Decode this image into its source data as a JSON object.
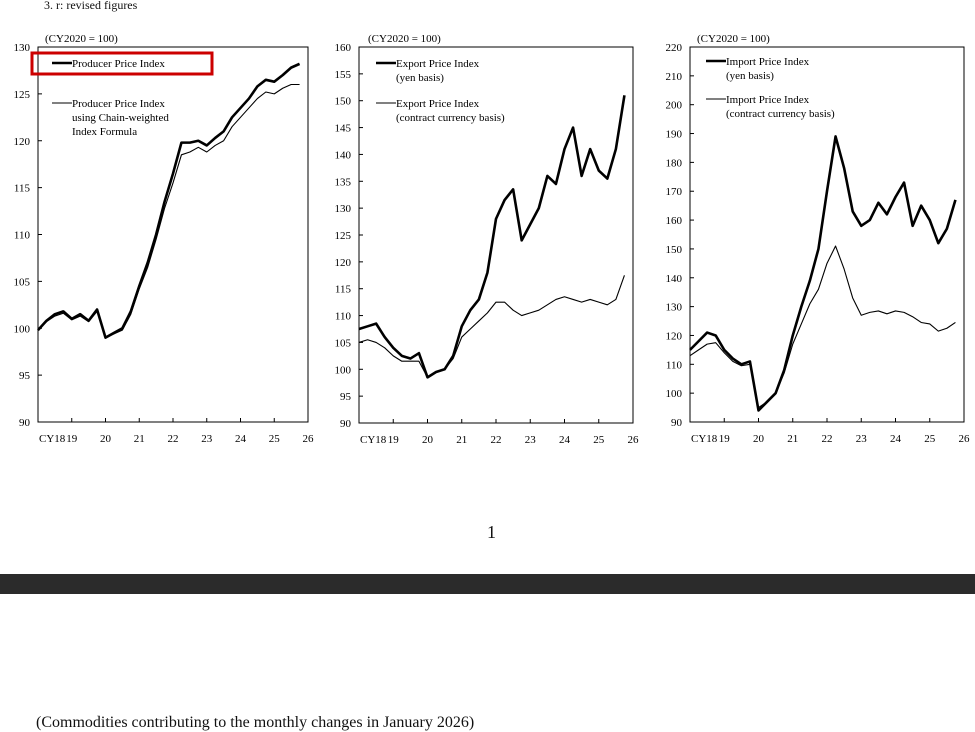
{
  "page": {
    "note": "3. r: revised figures",
    "page_number": "1",
    "section_heading": "(Commodities contributing to the monthly changes in January 2026)",
    "highlight_color": "#cc0000",
    "separator_color": "#2b2b2b"
  },
  "chart_data": [
    {
      "type": "line",
      "unit_label": "(CY2020 = 100)",
      "x_tick_labels": [
        "CY18",
        "19",
        "20",
        "21",
        "22",
        "23",
        "24",
        "25",
        "26"
      ],
      "ylim": [
        90,
        130
      ],
      "y_ticks": [
        90,
        95,
        100,
        105,
        110,
        115,
        120,
        125,
        130
      ],
      "x": [
        2018.0,
        2018.25,
        2018.5,
        2018.75,
        2019.0,
        2019.25,
        2019.5,
        2019.75,
        2020.0,
        2020.25,
        2020.5,
        2020.75,
        2021.0,
        2021.25,
        2021.5,
        2021.75,
        2022.0,
        2022.25,
        2022.5,
        2022.75,
        2023.0,
        2023.25,
        2023.5,
        2023.75,
        2024.0,
        2024.25,
        2024.5,
        2024.75,
        2025.0,
        2025.25,
        2025.5,
        2025.75
      ],
      "series": [
        {
          "name": "Producer Price Index",
          "legend_lines": [
            "Producer Price Index"
          ],
          "stroke": "#000",
          "width": 2.6,
          "highlighted": true,
          "values": [
            99.8,
            100.8,
            101.5,
            101.8,
            101.0,
            101.5,
            100.8,
            102.0,
            99.0,
            99.5,
            100.0,
            101.8,
            104.5,
            107.0,
            110.0,
            113.5,
            116.5,
            119.8,
            119.8,
            120.0,
            119.5,
            120.3,
            121.0,
            122.5,
            123.5,
            124.5,
            125.8,
            126.5,
            126.3,
            127.0,
            127.8,
            128.2
          ]
        },
        {
          "name": "Producer Price Index using Chain-weighted Index Formula",
          "legend_lines": [
            "Producer Price Index",
            "using Chain-weighted",
            "Index Formula"
          ],
          "stroke": "#000",
          "width": 1.1,
          "highlighted": false,
          "values": [
            99.8,
            100.7,
            101.3,
            101.6,
            100.9,
            101.3,
            100.7,
            101.8,
            99.0,
            99.4,
            99.8,
            101.5,
            104.2,
            106.5,
            109.5,
            112.8,
            115.5,
            118.5,
            118.8,
            119.3,
            118.8,
            119.5,
            120.0,
            121.5,
            122.5,
            123.5,
            124.5,
            125.2,
            125.0,
            125.6,
            126.0,
            126.0
          ]
        }
      ]
    },
    {
      "type": "line",
      "unit_label": "(CY2020 = 100)",
      "x_tick_labels": [
        "CY18",
        "19",
        "20",
        "21",
        "22",
        "23",
        "24",
        "25",
        "26"
      ],
      "ylim": [
        90,
        160
      ],
      "y_ticks": [
        90,
        95,
        100,
        105,
        110,
        115,
        120,
        125,
        130,
        135,
        140,
        145,
        150,
        155,
        160
      ],
      "x": [
        2018.0,
        2018.25,
        2018.5,
        2018.75,
        2019.0,
        2019.25,
        2019.5,
        2019.75,
        2020.0,
        2020.25,
        2020.5,
        2020.75,
        2021.0,
        2021.25,
        2021.5,
        2021.75,
        2022.0,
        2022.25,
        2022.5,
        2022.75,
        2023.0,
        2023.25,
        2023.5,
        2023.75,
        2024.0,
        2024.25,
        2024.5,
        2024.75,
        2025.0,
        2025.25,
        2025.5,
        2025.75
      ],
      "series": [
        {
          "name": "Export Price Index (yen basis)",
          "legend_lines": [
            "Export Price Index",
            "(yen basis)"
          ],
          "stroke": "#000",
          "width": 2.6,
          "highlighted": false,
          "values": [
            107.5,
            108.0,
            108.5,
            106.0,
            104.0,
            102.5,
            102.0,
            103.0,
            98.5,
            99.5,
            100.0,
            102.5,
            108.0,
            111.0,
            113.0,
            118.0,
            128.0,
            131.5,
            133.5,
            124.0,
            127.0,
            130.0,
            136.0,
            134.5,
            141.0,
            145.0,
            136.0,
            141.0,
            137.0,
            135.5,
            141.0,
            151.0
          ]
        },
        {
          "name": "Export Price Index (contract currency basis)",
          "legend_lines": [
            "Export Price Index",
            "(contract currency basis)"
          ],
          "stroke": "#000",
          "width": 1.1,
          "highlighted": false,
          "values": [
            105.0,
            105.5,
            105.0,
            104.0,
            102.5,
            101.5,
            101.5,
            101.5,
            98.5,
            99.5,
            100.0,
            102.0,
            106.0,
            107.5,
            109.0,
            110.5,
            112.5,
            112.5,
            111.0,
            110.0,
            110.5,
            111.0,
            112.0,
            113.0,
            113.5,
            113.0,
            112.5,
            113.0,
            112.5,
            112.0,
            113.0,
            117.5
          ]
        }
      ]
    },
    {
      "type": "line",
      "unit_label": "(CY2020 = 100)",
      "x_tick_labels": [
        "CY18",
        "19",
        "20",
        "21",
        "22",
        "23",
        "24",
        "25",
        "26"
      ],
      "ylim": [
        90,
        220
      ],
      "y_ticks": [
        90,
        100,
        110,
        120,
        130,
        140,
        150,
        160,
        170,
        180,
        190,
        200,
        210,
        220
      ],
      "x": [
        2018.0,
        2018.25,
        2018.5,
        2018.75,
        2019.0,
        2019.25,
        2019.5,
        2019.75,
        2020.0,
        2020.25,
        2020.5,
        2020.75,
        2021.0,
        2021.25,
        2021.5,
        2021.75,
        2022.0,
        2022.25,
        2022.5,
        2022.75,
        2023.0,
        2023.25,
        2023.5,
        2023.75,
        2024.0,
        2024.25,
        2024.5,
        2024.75,
        2025.0,
        2025.25,
        2025.5,
        2025.75
      ],
      "series": [
        {
          "name": "Import Price Index (yen basis)",
          "legend_lines": [
            "Import Price Index",
            "(yen basis)"
          ],
          "stroke": "#000",
          "width": 2.6,
          "highlighted": false,
          "values": [
            115.0,
            118.0,
            121.0,
            120.0,
            115.0,
            112.0,
            110.0,
            111.0,
            94.0,
            97.0,
            100.0,
            108.0,
            120.0,
            130.0,
            139.0,
            150.0,
            170.0,
            189.0,
            178.0,
            163.0,
            158.0,
            160.0,
            166.0,
            162.0,
            168.0,
            173.0,
            158.0,
            165.0,
            160.0,
            152.0,
            157.0,
            167.0
          ]
        },
        {
          "name": "Import Price Index (contract currency basis)",
          "legend_lines": [
            "Import Price Index",
            "(contract currency basis)"
          ],
          "stroke": "#000",
          "width": 1.1,
          "highlighted": false,
          "values": [
            113.0,
            115.0,
            117.0,
            117.5,
            114.0,
            111.0,
            109.5,
            110.0,
            95.0,
            97.0,
            100.0,
            107.0,
            117.0,
            124.0,
            131.0,
            136.0,
            145.0,
            151.0,
            143.0,
            133.0,
            127.0,
            128.0,
            128.5,
            127.5,
            128.5,
            128.0,
            126.5,
            124.5,
            124.0,
            121.5,
            122.5,
            124.5
          ]
        }
      ]
    }
  ]
}
